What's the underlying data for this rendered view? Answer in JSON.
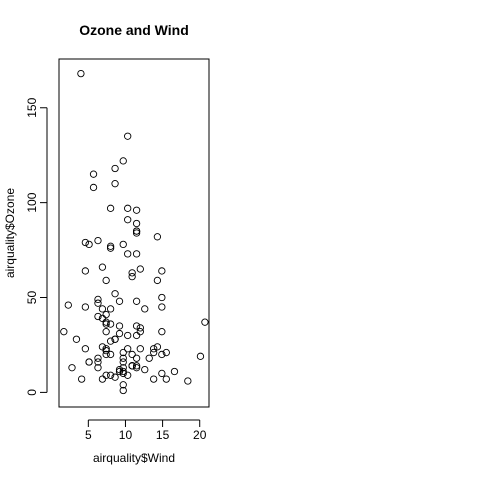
{
  "chart_data": {
    "type": "scatter",
    "title": "Ozone and Wind",
    "xlabel": "airquality$Wind",
    "ylabel": "airquality$Ozone",
    "xlim": [
      1.05,
      21.25
    ],
    "ylim": [
      -7.7,
      175.7
    ],
    "xticks": [
      5,
      10,
      15,
      20
    ],
    "xtick_labels": [
      "5",
      "10",
      "15",
      "20"
    ],
    "yticks": [
      0,
      50,
      100,
      150
    ],
    "ytick_labels": [
      "0",
      "50",
      "100",
      "150"
    ],
    "grid": false,
    "legend": "none",
    "marker": "open-circle",
    "points": [
      [
        7.4,
        41
      ],
      [
        8.0,
        36
      ],
      [
        12.6,
        12
      ],
      [
        11.5,
        18
      ],
      [
        8.6,
        28
      ],
      [
        13.8,
        23
      ],
      [
        20.1,
        19
      ],
      [
        8.6,
        8
      ],
      [
        6.9,
        7
      ],
      [
        9.7,
        16
      ],
      [
        9.2,
        11
      ],
      [
        10.9,
        14
      ],
      [
        13.2,
        18
      ],
      [
        11.5,
        14
      ],
      [
        12.0,
        34
      ],
      [
        18.4,
        6
      ],
      [
        11.5,
        30
      ],
      [
        9.7,
        11
      ],
      [
        9.7,
        1
      ],
      [
        16.6,
        11
      ],
      [
        9.7,
        4
      ],
      [
        12.0,
        32
      ],
      [
        12.0,
        23
      ],
      [
        14.9,
        45
      ],
      [
        5.7,
        115
      ],
      [
        7.4,
        37
      ],
      [
        9.7,
        10
      ],
      [
        13.8,
        7
      ],
      [
        11.5,
        48
      ],
      [
        8.0,
        20
      ],
      [
        14.9,
        32
      ],
      [
        20.7,
        37
      ],
      [
        9.2,
        12
      ],
      [
        11.5,
        13
      ],
      [
        10.3,
        135
      ],
      [
        6.3,
        49
      ],
      [
        1.7,
        32
      ],
      [
        4.6,
        64
      ],
      [
        6.3,
        40
      ],
      [
        8.0,
        77
      ],
      [
        8.0,
        97
      ],
      [
        10.3,
        97
      ],
      [
        11.5,
        85
      ],
      [
        14.9,
        10
      ],
      [
        8.0,
        27
      ],
      [
        4.1,
        7
      ],
      [
        9.2,
        48
      ],
      [
        9.2,
        35
      ],
      [
        10.9,
        61
      ],
      [
        4.6,
        79
      ],
      [
        10.9,
        63
      ],
      [
        5.1,
        16
      ],
      [
        6.3,
        80
      ],
      [
        5.7,
        108
      ],
      [
        7.4,
        20
      ],
      [
        8.6,
        52
      ],
      [
        14.3,
        82
      ],
      [
        14.9,
        50
      ],
      [
        14.9,
        64
      ],
      [
        14.3,
        59
      ],
      [
        6.9,
        39
      ],
      [
        10.3,
        9
      ],
      [
        6.3,
        16
      ],
      [
        5.1,
        78
      ],
      [
        11.5,
        35
      ],
      [
        6.9,
        66
      ],
      [
        9.7,
        122
      ],
      [
        11.5,
        89
      ],
      [
        8.6,
        110
      ],
      [
        8.0,
        44
      ],
      [
        8.6,
        28
      ],
      [
        12.0,
        65
      ],
      [
        7.4,
        22
      ],
      [
        7.4,
        59
      ],
      [
        7.4,
        23
      ],
      [
        9.2,
        31
      ],
      [
        6.9,
        44
      ],
      [
        13.8,
        21
      ],
      [
        7.4,
        9
      ],
      [
        4.6,
        45
      ],
      [
        4.0,
        168
      ],
      [
        10.3,
        73
      ],
      [
        8.0,
        76
      ],
      [
        8.6,
        118
      ],
      [
        11.5,
        84
      ],
      [
        11.5,
        85
      ],
      [
        11.5,
        96
      ],
      [
        9.7,
        78
      ],
      [
        11.5,
        73
      ],
      [
        10.3,
        91
      ],
      [
        6.3,
        47
      ],
      [
        7.4,
        32
      ],
      [
        10.9,
        20
      ],
      [
        10.3,
        23
      ],
      [
        15.5,
        21
      ],
      [
        14.3,
        24
      ],
      [
        12.6,
        44
      ],
      [
        9.7,
        21
      ],
      [
        3.4,
        28
      ],
      [
        8.0,
        9
      ],
      [
        9.7,
        13
      ],
      [
        2.3,
        46
      ],
      [
        6.3,
        18
      ],
      [
        6.3,
        13
      ],
      [
        6.9,
        24
      ],
      [
        5.1,
        16
      ],
      [
        2.8,
        13
      ],
      [
        4.6,
        23
      ],
      [
        7.4,
        36
      ],
      [
        15.5,
        7
      ],
      [
        10.9,
        14
      ],
      [
        10.3,
        30
      ],
      [
        10.9,
        14
      ],
      [
        9.7,
        18
      ],
      [
        14.9,
        20
      ]
    ]
  }
}
